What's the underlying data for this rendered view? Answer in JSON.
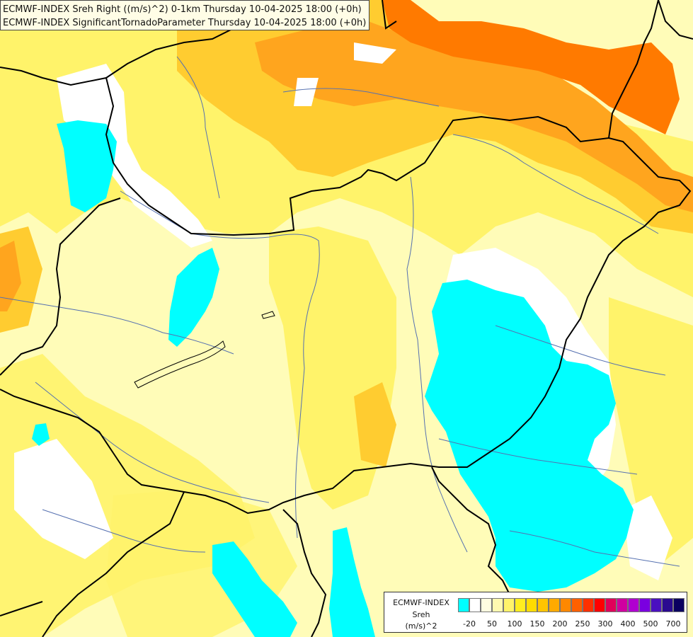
{
  "title": {
    "line1": "ECMWF-INDEX Sreh Right ((m/s)^2) 0-1km Thursday 10-04-2025 18:00 (+0h)",
    "line2": "ECMWF-INDEX SignificantTornadoParameter Thursday 10-04-2025 18:00 (+0h)"
  },
  "legend": {
    "line1": "ECMWF-INDEX",
    "line2": "Sreh",
    "line3": "(m/s)^2",
    "colors": [
      "#00ffff",
      "#ffffff",
      "#fffde0",
      "#fff9b0",
      "#fff36a",
      "#ffed20",
      "#ffdc00",
      "#ffc400",
      "#ffaa00",
      "#ff8800",
      "#ff6000",
      "#ff3000",
      "#ff0000",
      "#e0005a",
      "#d000a0",
      "#b000d0",
      "#7a00e0",
      "#4a10c0",
      "#2a0a90",
      "#0a0060"
    ],
    "ticks": [
      "-20",
      "50",
      "100",
      "150",
      "200",
      "250",
      "300",
      "400",
      "500",
      "700"
    ]
  },
  "colors": {
    "land_pale": "#fffcb8",
    "yellow": "#fff26a",
    "orange_light": "#ffcc30",
    "orange": "#ffa51e",
    "orange_dark": "#ff7a00",
    "cyan": "#00ffff",
    "white": "#ffffff",
    "border": "#000000",
    "river": "#5570b0"
  }
}
